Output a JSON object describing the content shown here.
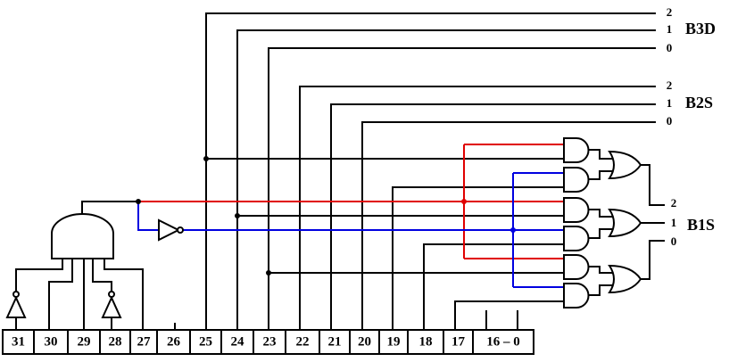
{
  "buses": [
    {
      "name": "B3D",
      "bits": [
        "2",
        "1",
        "0"
      ]
    },
    {
      "name": "B2S",
      "bits": [
        "2",
        "1",
        "0"
      ]
    },
    {
      "name": "B1S",
      "bits": [
        "2",
        "1",
        "0"
      ]
    }
  ],
  "register": {
    "fields": [
      "31",
      "30",
      "29",
      "28",
      "27",
      "26",
      "25",
      "24",
      "23",
      "22",
      "21",
      "20",
      "19",
      "18",
      "17",
      "16 – 0"
    ]
  }
}
